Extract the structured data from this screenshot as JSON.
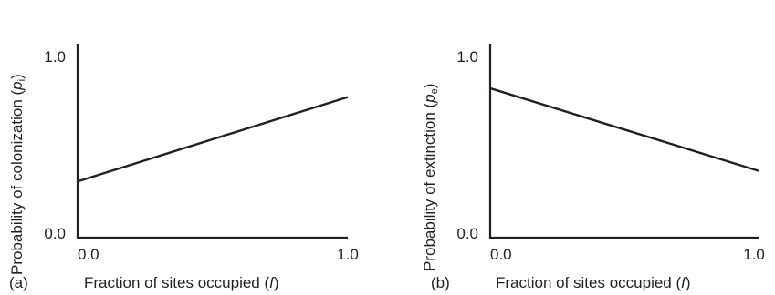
{
  "chart_data": [
    {
      "type": "line",
      "panel_label": "(a)",
      "xlabel": "Fraction of sites occupied (f)",
      "ylabel": "Probability of colonization (pi)",
      "xlabel_main": "Fraction of sites occupied (",
      "xlabel_var": "f",
      "xlabel_end": ")",
      "ylabel_main": "Probability of colonization (",
      "ylabel_var": "p",
      "ylabel_sub": "i",
      "ylabel_end": ")",
      "xlim": [
        0.0,
        1.0
      ],
      "ylim": [
        0.0,
        1.0
      ],
      "xticks": [
        "0.0",
        "1.0"
      ],
      "yticks": [
        "0.0",
        "1.0"
      ],
      "x": [
        0.0,
        1.0
      ],
      "y": [
        0.32,
        0.8
      ]
    },
    {
      "type": "line",
      "panel_label": "(b)",
      "xlabel": "Fraction of sites occupied (f)",
      "ylabel": "Probability of extinction (pe)",
      "xlabel_main": "Fraction of sites occupied (",
      "xlabel_var": "f",
      "xlabel_end": ")",
      "ylabel_main": "Probability of extinction (",
      "ylabel_var": "p",
      "ylabel_sub": "e",
      "ylabel_end": ")",
      "xlim": [
        0.0,
        1.0
      ],
      "ylim": [
        0.0,
        1.0
      ],
      "xticks": [
        "0.0",
        "1.0"
      ],
      "yticks": [
        "0.0",
        "1.0"
      ],
      "x": [
        0.0,
        1.0
      ],
      "y": [
        0.85,
        0.38
      ]
    }
  ]
}
